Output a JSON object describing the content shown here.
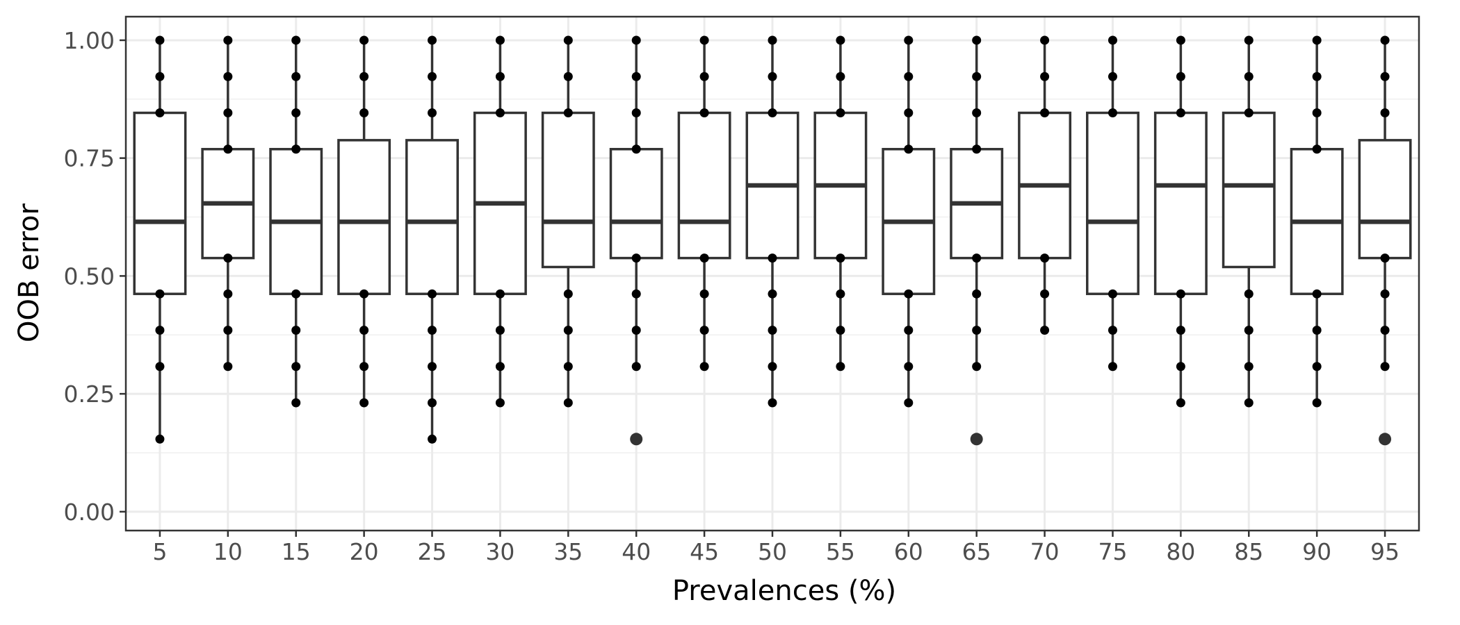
{
  "chart_data": {
    "type": "boxplot",
    "title": "",
    "xlabel": "Prevalences (%)",
    "ylabel": "OOB error",
    "ylim": [
      -0.04,
      1.05
    ],
    "yticks": [
      0.0,
      0.25,
      0.5,
      0.75,
      1.0
    ],
    "ytick_labels": [
      "0.00",
      "0.25",
      "0.50",
      "0.75",
      "1.00"
    ],
    "grid": true,
    "categories": [
      "5",
      "10",
      "15",
      "20",
      "25",
      "30",
      "35",
      "40",
      "45",
      "50",
      "55",
      "60",
      "65",
      "70",
      "75",
      "80",
      "85",
      "90",
      "95"
    ],
    "boxes": [
      {
        "category": "5",
        "q1": 0.462,
        "median": 0.615,
        "q3": 0.846,
        "whisker_low": 0.154,
        "whisker_high": 1.0,
        "points": [
          0.154,
          0.308,
          0.385,
          0.462,
          0.846,
          0.923,
          1.0
        ],
        "outliers": []
      },
      {
        "category": "10",
        "q1": 0.538,
        "median": 0.654,
        "q3": 0.769,
        "whisker_low": 0.308,
        "whisker_high": 1.0,
        "points": [
          0.308,
          0.385,
          0.462,
          0.538,
          0.769,
          0.846,
          0.923,
          1.0
        ],
        "outliers": []
      },
      {
        "category": "15",
        "q1": 0.462,
        "median": 0.615,
        "q3": 0.769,
        "whisker_low": 0.231,
        "whisker_high": 1.0,
        "points": [
          0.231,
          0.308,
          0.385,
          0.462,
          0.769,
          0.846,
          0.923,
          1.0
        ],
        "outliers": []
      },
      {
        "category": "20",
        "q1": 0.462,
        "median": 0.615,
        "q3": 0.788,
        "whisker_low": 0.231,
        "whisker_high": 1.0,
        "points": [
          0.231,
          0.308,
          0.385,
          0.462,
          0.846,
          0.923,
          1.0
        ],
        "outliers": []
      },
      {
        "category": "25",
        "q1": 0.462,
        "median": 0.615,
        "q3": 0.788,
        "whisker_low": 0.154,
        "whisker_high": 1.0,
        "points": [
          0.154,
          0.231,
          0.308,
          0.385,
          0.462,
          0.846,
          0.923,
          1.0
        ],
        "outliers": []
      },
      {
        "category": "30",
        "q1": 0.462,
        "median": 0.654,
        "q3": 0.846,
        "whisker_low": 0.231,
        "whisker_high": 1.0,
        "points": [
          0.231,
          0.308,
          0.385,
          0.462,
          0.846,
          0.923,
          1.0
        ],
        "outliers": []
      },
      {
        "category": "35",
        "q1": 0.519,
        "median": 0.615,
        "q3": 0.846,
        "whisker_low": 0.231,
        "whisker_high": 1.0,
        "points": [
          0.231,
          0.308,
          0.385,
          0.462,
          0.846,
          0.923,
          1.0
        ],
        "outliers": []
      },
      {
        "category": "40",
        "q1": 0.538,
        "median": 0.615,
        "q3": 0.769,
        "whisker_low": 0.308,
        "whisker_high": 1.0,
        "points": [
          0.308,
          0.385,
          0.462,
          0.538,
          0.769,
          0.846,
          0.923,
          1.0
        ],
        "outliers": [
          0.154
        ]
      },
      {
        "category": "45",
        "q1": 0.538,
        "median": 0.615,
        "q3": 0.846,
        "whisker_low": 0.308,
        "whisker_high": 1.0,
        "points": [
          0.308,
          0.385,
          0.462,
          0.538,
          0.846,
          0.923,
          1.0
        ],
        "outliers": []
      },
      {
        "category": "50",
        "q1": 0.538,
        "median": 0.692,
        "q3": 0.846,
        "whisker_low": 0.231,
        "whisker_high": 1.0,
        "points": [
          0.231,
          0.308,
          0.385,
          0.462,
          0.538,
          0.846,
          0.923,
          1.0
        ],
        "outliers": []
      },
      {
        "category": "55",
        "q1": 0.538,
        "median": 0.692,
        "q3": 0.846,
        "whisker_low": 0.308,
        "whisker_high": 1.0,
        "points": [
          0.308,
          0.385,
          0.462,
          0.538,
          0.846,
          0.923,
          1.0
        ],
        "outliers": []
      },
      {
        "category": "60",
        "q1": 0.462,
        "median": 0.615,
        "q3": 0.769,
        "whisker_low": 0.231,
        "whisker_high": 1.0,
        "points": [
          0.231,
          0.308,
          0.385,
          0.462,
          0.769,
          0.846,
          0.923,
          1.0
        ],
        "outliers": []
      },
      {
        "category": "65",
        "q1": 0.538,
        "median": 0.654,
        "q3": 0.769,
        "whisker_low": 0.308,
        "whisker_high": 1.0,
        "points": [
          0.308,
          0.385,
          0.462,
          0.538,
          0.769,
          0.846,
          0.923,
          1.0
        ],
        "outliers": [
          0.154
        ]
      },
      {
        "category": "70",
        "q1": 0.538,
        "median": 0.692,
        "q3": 0.846,
        "whisker_low": 0.385,
        "whisker_high": 1.0,
        "points": [
          0.385,
          0.462,
          0.538,
          0.846,
          0.923,
          1.0
        ],
        "outliers": []
      },
      {
        "category": "75",
        "q1": 0.462,
        "median": 0.615,
        "q3": 0.846,
        "whisker_low": 0.308,
        "whisker_high": 1.0,
        "points": [
          0.308,
          0.385,
          0.462,
          0.846,
          0.923,
          1.0
        ],
        "outliers": []
      },
      {
        "category": "80",
        "q1": 0.462,
        "median": 0.692,
        "q3": 0.846,
        "whisker_low": 0.231,
        "whisker_high": 1.0,
        "points": [
          0.231,
          0.308,
          0.385,
          0.462,
          0.846,
          0.923,
          1.0
        ],
        "outliers": []
      },
      {
        "category": "85",
        "q1": 0.519,
        "median": 0.692,
        "q3": 0.846,
        "whisker_low": 0.231,
        "whisker_high": 1.0,
        "points": [
          0.231,
          0.308,
          0.385,
          0.462,
          0.846,
          0.923,
          1.0
        ],
        "outliers": []
      },
      {
        "category": "90",
        "q1": 0.462,
        "median": 0.615,
        "q3": 0.769,
        "whisker_low": 0.231,
        "whisker_high": 1.0,
        "points": [
          0.231,
          0.308,
          0.385,
          0.462,
          0.769,
          0.846,
          0.923,
          1.0
        ],
        "outliers": []
      },
      {
        "category": "95",
        "q1": 0.538,
        "median": 0.615,
        "q3": 0.788,
        "whisker_low": 0.308,
        "whisker_high": 1.0,
        "points": [
          0.308,
          0.385,
          0.462,
          0.538,
          0.846,
          0.923,
          1.0
        ],
        "outliers": [
          0.154
        ]
      }
    ],
    "colors": {
      "box_stroke": "#333333",
      "point": "#000000",
      "outlier": "#333333",
      "grid_major": "#ebebeb",
      "grid_minor": "#f3f3f3",
      "panel_border": "#333333",
      "background": "#ffffff"
    }
  }
}
